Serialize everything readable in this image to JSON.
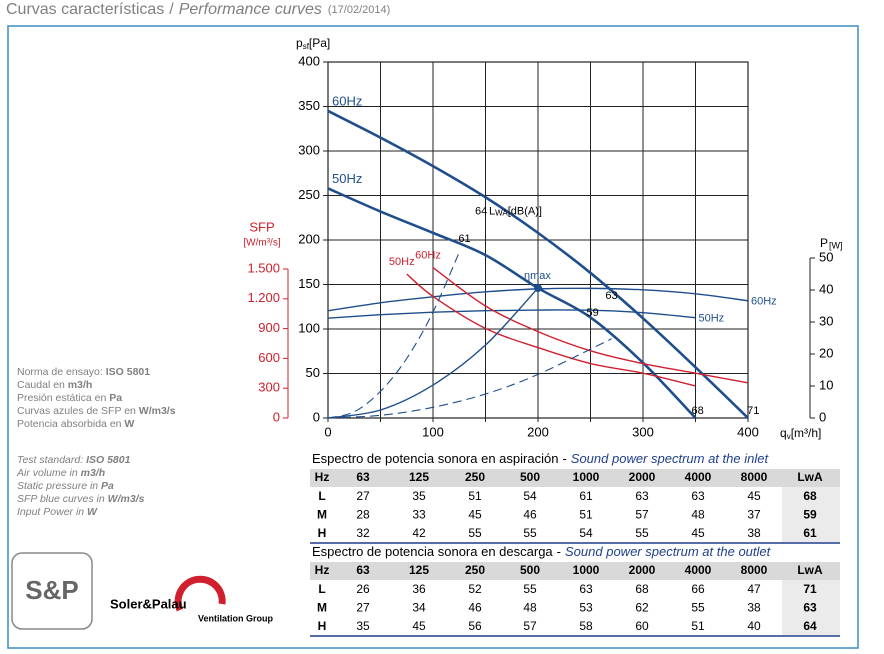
{
  "header": {
    "title_es": "Curvas características",
    "separator": "/",
    "title_en": "Performance curves",
    "date": "(17/02/2014)"
  },
  "chart_data": {
    "type": "line",
    "x_label": [
      "q",
      "v",
      "[m³/h]"
    ],
    "y_label": [
      "p",
      "sf",
      "[Pa]"
    ],
    "y2_label": [
      "P",
      "[W]"
    ],
    "y3_label": [
      "SFP",
      "[W/m³/s]"
    ],
    "xlim": [
      0,
      400
    ],
    "xticks": [
      0,
      100,
      200,
      300,
      400
    ],
    "xminorticks": [
      50,
      150,
      250,
      350
    ],
    "ylim": [
      0,
      400
    ],
    "yticks": [
      0,
      50,
      100,
      150,
      200,
      250,
      300,
      350,
      400
    ],
    "y2lim": [
      0,
      50
    ],
    "y2ticks": [
      0,
      10,
      20,
      30,
      40,
      50
    ],
    "y3lim": [
      0,
      1500
    ],
    "y3ticks": [
      0,
      300,
      600,
      900,
      {
        "value": 1200,
        "label": "1.200"
      },
      {
        "value": 1500,
        "label": "1.500"
      }
    ],
    "grid": true,
    "series": [
      {
        "name": "60Hz",
        "color": "#1f4e8c",
        "axis": "y",
        "line_style": "thick",
        "label": "start",
        "x": [
          0,
          50,
          100,
          150,
          200,
          250,
          300,
          350,
          400
        ],
        "values": [
          345,
          315,
          283,
          248,
          208,
          163,
          112,
          57,
          0
        ]
      },
      {
        "name": "50Hz",
        "color": "#1f4e8c",
        "axis": "y",
        "line_style": "thick",
        "label": "start",
        "x": [
          0,
          50,
          100,
          150,
          200,
          250,
          300,
          350
        ],
        "values": [
          258,
          232,
          208,
          183,
          146,
          113,
          62,
          0
        ]
      },
      {
        "name": "60Hz",
        "color": "#1f4e8c",
        "axis": "y3",
        "line_style": "thin",
        "label": "end",
        "x": [
          0,
          50,
          100,
          150,
          200,
          250,
          300,
          350,
          400
        ],
        "values": [
          1080,
          1160,
          1220,
          1270,
          1300,
          1305,
          1290,
          1250,
          1180
        ]
      },
      {
        "name": "50Hz",
        "color": "#1f4e8c",
        "axis": "y3",
        "line_style": "thin",
        "label": "end",
        "x": [
          0,
          50,
          100,
          150,
          200,
          250,
          300,
          350
        ],
        "values": [
          1005,
          1040,
          1065,
          1080,
          1087,
          1085,
          1060,
          1010
        ]
      },
      {
        "name": "60Hz",
        "color": "#d0202e",
        "axis": "y2",
        "line_style": "thin",
        "label": "start",
        "x": [
          100,
          150,
          200,
          250,
          300,
          350,
          400
        ],
        "values": [
          47,
          35,
          27,
          21,
          17,
          14,
          11
        ]
      },
      {
        "name": "50Hz",
        "color": "#d0202e",
        "axis": "y2",
        "line_style": "thin",
        "label": "start",
        "x": [
          75,
          100,
          150,
          200,
          250,
          300,
          350
        ],
        "values": [
          45,
          38,
          28,
          22,
          17,
          14,
          10
        ]
      },
      {
        "color": "#1f4e8c",
        "axis": "y",
        "line_style": "dashed",
        "x": [
          0,
          25,
          50,
          75,
          100,
          126
        ],
        "values": [
          0,
          7,
          30,
          67,
          119,
          189
        ]
      },
      {
        "color": "#1f4e8c",
        "axis": "y",
        "line_style": "thin",
        "x": [
          0,
          50,
          100,
          150,
          200
        ],
        "values": [
          0,
          9,
          37,
          82,
          146
        ]
      },
      {
        "color": "#1f4e8c",
        "axis": "y",
        "line_style": "dashed",
        "x": [
          0,
          50,
          100,
          150,
          200,
          270
        ],
        "values": [
          0,
          3,
          12,
          27,
          49,
          89
        ]
      }
    ],
    "annotations": [
      {
        "text": "64",
        "x": 140,
        "y": 232
      },
      {
        "text": "61",
        "x": 130,
        "y": 201
      },
      {
        "text": "63",
        "x": 270,
        "y": 137
      },
      {
        "text": "59",
        "x": 252,
        "y": 118
      },
      {
        "text": "68",
        "x": 352,
        "y": 8
      },
      {
        "text": "71",
        "x": 405,
        "y": 8
      }
    ],
    "lwa_label": [
      "L",
      "WA",
      "[dB(A)]"
    ],
    "eta_max": {
      "label": "ηmax",
      "x": 200,
      "y": 146
    }
  },
  "notes_es": [
    [
      "Norma de ensayo: ",
      "ISO 5801"
    ],
    [
      "Caudal en ",
      "m3/h"
    ],
    [
      "Presión estática en ",
      "Pa"
    ],
    [
      "Curvas azules de SFP en ",
      "W/m3/s"
    ],
    [
      "Potencia absorbida en ",
      "W"
    ]
  ],
  "notes_en": [
    [
      "Test standard: ",
      "ISO 5801"
    ],
    [
      "Air volume in ",
      "m3/h"
    ],
    [
      "Static pressure in ",
      "Pa"
    ],
    [
      "SFP blue curves in ",
      "W/m3/s"
    ],
    [
      "Input Power in ",
      "W"
    ]
  ],
  "tables": [
    {
      "caption_es": "Espectro de potencia sonora en aspiración",
      "separator": "-",
      "caption_en": "Sound power spectrum at the inlet",
      "header": [
        "Hz",
        63,
        125,
        250,
        500,
        1000,
        2000,
        4000,
        8000,
        "LwA"
      ],
      "rows": [
        [
          "L",
          27,
          35,
          51,
          54,
          61,
          63,
          63,
          45,
          68
        ],
        [
          "M",
          28,
          33,
          45,
          46,
          51,
          57,
          48,
          37,
          59
        ],
        [
          "H",
          32,
          42,
          55,
          55,
          54,
          55,
          45,
          38,
          61
        ]
      ]
    },
    {
      "caption_es": "Espectro de potencia sonora en descarga",
      "separator": "-",
      "caption_en": "Sound power spectrum at the outlet",
      "header": [
        "Hz",
        63,
        125,
        250,
        500,
        1000,
        2000,
        4000,
        8000,
        "LwA"
      ],
      "rows": [
        [
          "L",
          26,
          36,
          52,
          55,
          63,
          68,
          66,
          47,
          71
        ],
        [
          "M",
          27,
          34,
          46,
          48,
          53,
          62,
          55,
          38,
          63
        ],
        [
          "H",
          35,
          45,
          56,
          57,
          58,
          60,
          51,
          40,
          64
        ]
      ]
    }
  ],
  "logo": {
    "mark": "S&P",
    "brand": "Soler&Palau",
    "group": "Ventilation Group"
  }
}
